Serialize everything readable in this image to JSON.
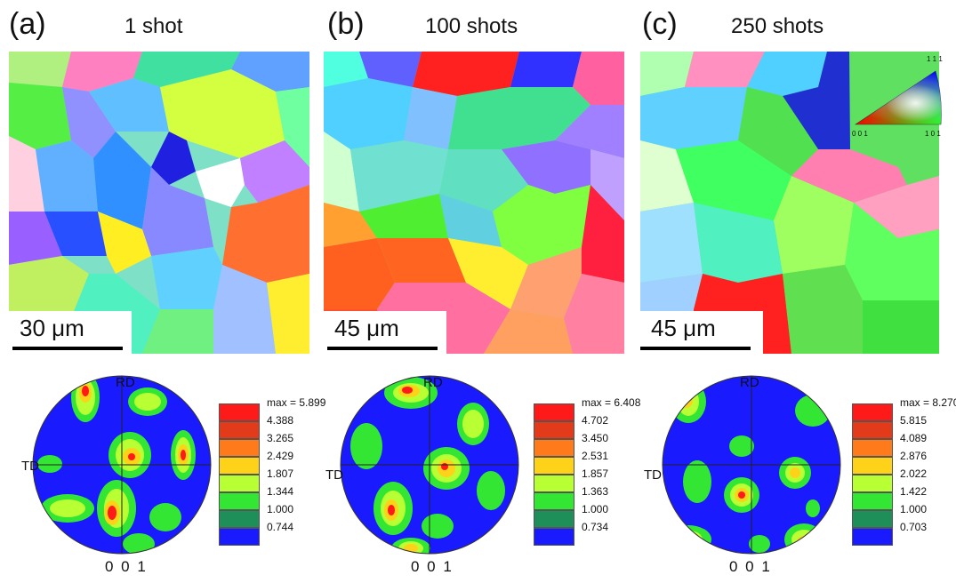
{
  "colors": {
    "red": "#ff1a1a",
    "orange": "#ff7a1a",
    "yellow": "#ffd21a",
    "lime": "#b8ff33",
    "green": "#33e633",
    "darkgreen": "#1f8f5a",
    "blue": "#1a1aff",
    "background": "#ffffff"
  },
  "panels": [
    {
      "letter": "(a)",
      "title": "1 shot",
      "scalebar": "30 μm",
      "pole_figure": {
        "rd": "RD",
        "td": "TD",
        "plane": "0 0 1"
      },
      "legend": {
        "max": "max = 5.899",
        "levels": [
          "4.388",
          "3.265",
          "2.429",
          "1.807",
          "1.344",
          "1.000",
          "0.744"
        ]
      }
    },
    {
      "letter": "(b)",
      "title": "100 shots",
      "scalebar": "45 μm",
      "pole_figure": {
        "rd": "RD",
        "td": "TD",
        "plane": "0 0 1"
      },
      "legend": {
        "max": "max = 6.408",
        "levels": [
          "4.702",
          "3.450",
          "2.531",
          "1.857",
          "1.363",
          "1.000",
          "0.734"
        ]
      }
    },
    {
      "letter": "(c)",
      "title": "250 shots",
      "scalebar": "45 μm",
      "pole_figure": {
        "rd": "RD",
        "td": "TD",
        "plane": "0 0 1"
      },
      "legend": {
        "max": "max = 8.270",
        "levels": [
          "5.815",
          "4.089",
          "2.876",
          "2.022",
          "1.422",
          "1.000",
          "0.703"
        ]
      }
    }
  ],
  "ipf_key": {
    "top": "1 1 1",
    "left": "0 0 1",
    "right": "1 0 1"
  }
}
